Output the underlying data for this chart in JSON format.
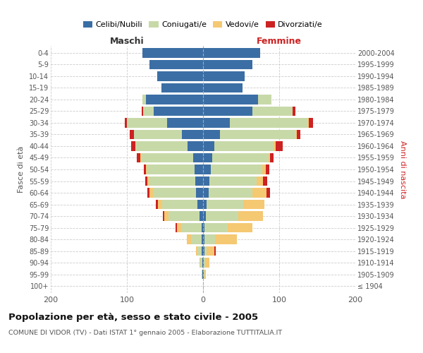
{
  "age_groups": [
    "100+",
    "95-99",
    "90-94",
    "85-89",
    "80-84",
    "75-79",
    "70-74",
    "65-69",
    "60-64",
    "55-59",
    "50-54",
    "45-49",
    "40-44",
    "35-39",
    "30-34",
    "25-29",
    "20-24",
    "15-19",
    "10-14",
    "5-9",
    "0-4"
  ],
  "birth_years": [
    "≤ 1904",
    "1905-1909",
    "1910-1914",
    "1915-1919",
    "1920-1924",
    "1925-1929",
    "1930-1934",
    "1935-1939",
    "1940-1944",
    "1945-1949",
    "1950-1954",
    "1955-1959",
    "1960-1964",
    "1965-1969",
    "1970-1974",
    "1975-1979",
    "1980-1984",
    "1985-1989",
    "1990-1994",
    "1995-1999",
    "2000-2004"
  ],
  "male_celibi": [
    0,
    1,
    1,
    2,
    2,
    2,
    5,
    7,
    9,
    10,
    11,
    13,
    20,
    28,
    47,
    65,
    75,
    55,
    60,
    70,
    80
  ],
  "male_coniugati": [
    0,
    1,
    3,
    5,
    14,
    27,
    40,
    47,
    57,
    61,
    63,
    68,
    68,
    63,
    53,
    14,
    5,
    0,
    0,
    0,
    0
  ],
  "male_vedovi": [
    0,
    0,
    1,
    2,
    5,
    5,
    6,
    5,
    4,
    2,
    1,
    1,
    1,
    0,
    0,
    0,
    0,
    0,
    0,
    0,
    0
  ],
  "male_divorziati": [
    0,
    0,
    0,
    0,
    0,
    2,
    2,
    3,
    3,
    3,
    3,
    5,
    5,
    5,
    3,
    2,
    0,
    0,
    0,
    0,
    0
  ],
  "female_nubili": [
    0,
    1,
    1,
    2,
    2,
    2,
    4,
    5,
    7,
    8,
    10,
    12,
    15,
    22,
    35,
    65,
    72,
    52,
    55,
    65,
    75
  ],
  "female_coniugate": [
    0,
    1,
    2,
    3,
    14,
    30,
    42,
    48,
    58,
    62,
    68,
    74,
    78,
    100,
    103,
    53,
    18,
    0,
    0,
    0,
    0
  ],
  "female_vedove": [
    0,
    2,
    5,
    10,
    28,
    33,
    33,
    28,
    18,
    9,
    4,
    2,
    2,
    1,
    1,
    0,
    0,
    0,
    0,
    0,
    0
  ],
  "female_divorziate": [
    0,
    0,
    0,
    2,
    0,
    0,
    0,
    0,
    5,
    5,
    5,
    5,
    10,
    5,
    5,
    3,
    0,
    0,
    0,
    0,
    0
  ],
  "colors": {
    "celibi_nubili": "#3B6EA5",
    "coniugati": "#C8D9A8",
    "vedovi": "#F5C872",
    "divorziati": "#CC2222"
  },
  "xlim": 200,
  "title": "Popolazione per età, sesso e stato civile - 2005",
  "subtitle": "COMUNE DI VIDOR (TV) - Dati ISTAT 1° gennaio 2005 - Elaborazione TUTTITALIA.IT",
  "ylabel_left": "Fasce di età",
  "ylabel_right": "Anni di nascita",
  "xlabel_left": "Maschi",
  "xlabel_right": "Femmine"
}
